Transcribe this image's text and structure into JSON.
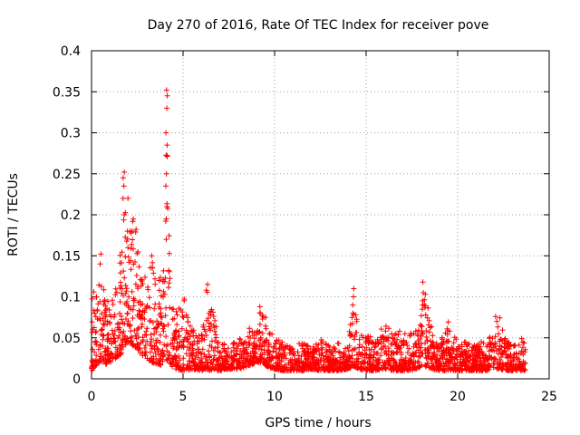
{
  "chart_data": {
    "type": "scatter",
    "title": "Day 270 of 2016, Rate Of TEC Index for receiver pove",
    "xlabel": "GPS time / hours",
    "ylabel": "ROTI / TECUs",
    "xlim": [
      0,
      25
    ],
    "ylim": [
      0,
      0.4
    ],
    "grid": true,
    "marker": "+",
    "color": "#ff0000",
    "x_ticks": [
      0,
      5,
      10,
      15,
      20,
      25
    ],
    "x_tick_labels": [
      "0",
      "5",
      "10",
      "15",
      "20",
      "25"
    ],
    "y_ticks": [
      0,
      0.05,
      0.1,
      0.15,
      0.2,
      0.25,
      0.3,
      0.35,
      0.4
    ],
    "y_tick_labels": [
      "0",
      "0.05",
      "0.1",
      "0.15",
      "0.2",
      "0.25",
      "0.3",
      "0.35",
      "0.4"
    ],
    "series": [
      {
        "name": "ROTI",
        "envelope": {
          "x": [
            0.0,
            0.3,
            0.5,
            0.8,
            1.0,
            1.3,
            1.6,
            1.8,
            2.0,
            2.3,
            2.5,
            2.7,
            3.0,
            3.3,
            3.6,
            4.0,
            4.1,
            4.3,
            4.6,
            5.0,
            5.5,
            6.0,
            6.3,
            6.6,
            7.0,
            7.5,
            8.0,
            8.5,
            9.0,
            9.3,
            9.6,
            10.0,
            10.5,
            11.0,
            11.5,
            12.0,
            12.5,
            13.0,
            13.5,
            14.0,
            14.3,
            14.6,
            15.0,
            15.5,
            16.0,
            16.5,
            17.0,
            17.5,
            18.0,
            18.3,
            18.6,
            19.0,
            19.5,
            20.0,
            20.5,
            21.0,
            21.5,
            22.0,
            22.3,
            22.6,
            23.0,
            23.3,
            23.7
          ],
          "low": [
            0.01,
            0.015,
            0.02,
            0.018,
            0.02,
            0.025,
            0.03,
            0.04,
            0.045,
            0.04,
            0.035,
            0.03,
            0.025,
            0.02,
            0.018,
            0.015,
            0.02,
            0.015,
            0.012,
            0.01,
            0.012,
            0.01,
            0.01,
            0.01,
            0.01,
            0.012,
            0.012,
            0.015,
            0.02,
            0.02,
            0.015,
            0.012,
            0.01,
            0.01,
            0.01,
            0.012,
            0.01,
            0.01,
            0.01,
            0.012,
            0.015,
            0.012,
            0.01,
            0.01,
            0.012,
            0.01,
            0.01,
            0.01,
            0.015,
            0.015,
            0.012,
            0.01,
            0.01,
            0.01,
            0.01,
            0.01,
            0.01,
            0.012,
            0.012,
            0.01,
            0.01,
            0.01,
            0.01
          ],
          "high": [
            0.105,
            0.11,
            0.15,
            0.1,
            0.095,
            0.12,
            0.16,
            0.25,
            0.22,
            0.2,
            0.18,
            0.14,
            0.12,
            0.15,
            0.1,
            0.2,
            0.35,
            0.1,
            0.09,
            0.105,
            0.06,
            0.055,
            0.115,
            0.085,
            0.045,
            0.04,
            0.05,
            0.06,
            0.075,
            0.09,
            0.07,
            0.05,
            0.045,
            0.04,
            0.045,
            0.04,
            0.05,
            0.04,
            0.045,
            0.04,
            0.11,
            0.05,
            0.06,
            0.045,
            0.07,
            0.055,
            0.06,
            0.055,
            0.08,
            0.12,
            0.06,
            0.045,
            0.07,
            0.045,
            0.045,
            0.04,
            0.05,
            0.055,
            0.075,
            0.05,
            0.04,
            0.045,
            0.055
          ]
        },
        "spikes": [
          {
            "x": 1.75,
            "y": [
              0.252,
              0.245,
              0.235,
              0.22,
              0.2
            ]
          },
          {
            "x": 2.0,
            "y": [
              0.22,
              0.18,
              0.16
            ]
          },
          {
            "x": 4.1,
            "y": [
              0.352,
              0.345,
              0.33,
              0.3,
              0.285,
              0.25,
              0.235,
              0.21,
              0.195,
              0.17
            ]
          },
          {
            "x": 3.3,
            "y": [
              0.15
            ]
          },
          {
            "x": 0.5,
            "y": [
              0.152,
              0.14
            ]
          },
          {
            "x": 6.3,
            "y": [
              0.115,
              0.108
            ]
          },
          {
            "x": 14.3,
            "y": [
              0.11,
              0.1,
              0.09,
              0.08
            ]
          },
          {
            "x": 18.1,
            "y": [
              0.118,
              0.105,
              0.095,
              0.085
            ]
          },
          {
            "x": 9.2,
            "y": [
              0.088,
              0.08
            ]
          },
          {
            "x": 22.1,
            "y": [
              0.076,
              0.07
            ]
          }
        ]
      }
    ]
  }
}
